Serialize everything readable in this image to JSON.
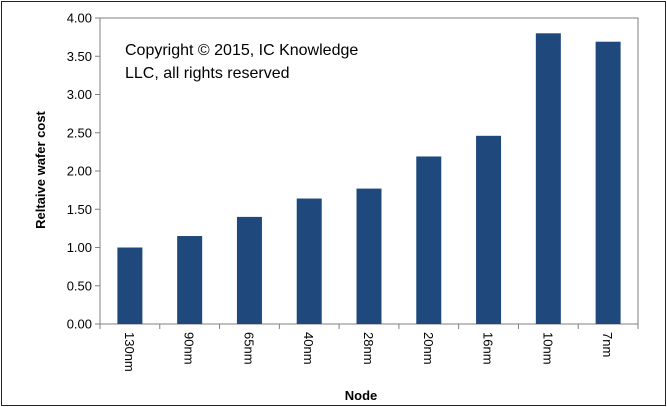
{
  "chart_data": {
    "type": "bar",
    "title": "",
    "xlabel": "Node",
    "ylabel": "Reltaive wafer cost",
    "categories": [
      "130nm",
      "90nm",
      "65nm",
      "40nm",
      "28nm",
      "20nm",
      "16nm",
      "10nm",
      "7nm"
    ],
    "values": [
      1.0,
      1.15,
      1.4,
      1.64,
      1.77,
      2.19,
      2.46,
      3.8,
      3.69
    ],
    "ylim": [
      0,
      4
    ],
    "yticks": [
      "0.00",
      "0.50",
      "1.00",
      "1.50",
      "2.00",
      "2.50",
      "3.00",
      "3.50",
      "4.00"
    ],
    "grid": false,
    "legend": "none",
    "bar_color": "#1F497D",
    "annotation_lines": [
      "Copyright © 2015, IC Knowledge",
      "LLC, all rights reserved"
    ]
  }
}
